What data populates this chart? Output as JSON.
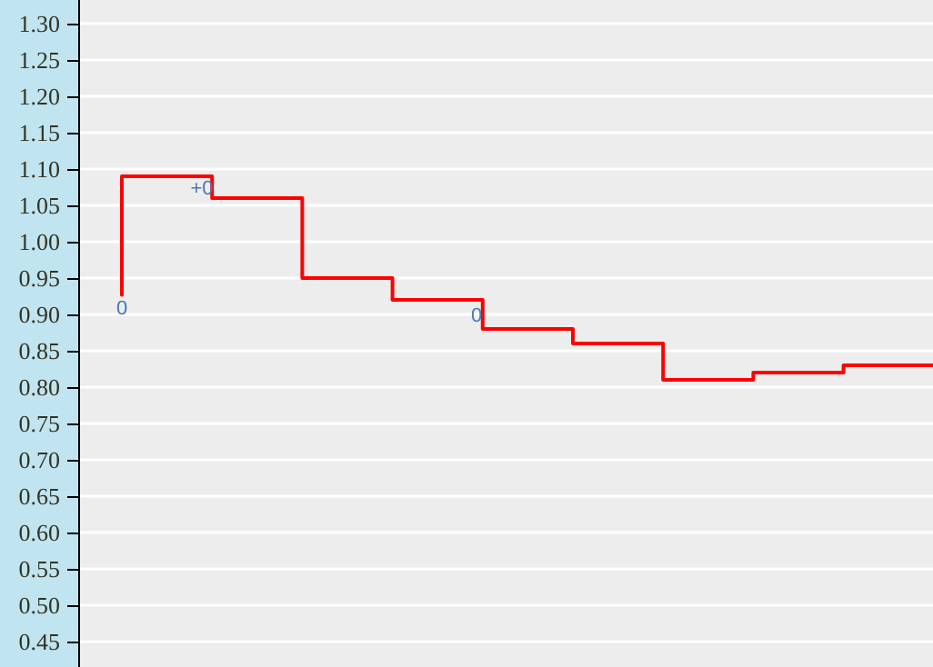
{
  "chart_data": {
    "type": "step",
    "categories": [
      null,
      null,
      null,
      null,
      null,
      null,
      null,
      null,
      null,
      null
    ],
    "series": [
      {
        "color": "#ff0000",
        "values": [
          0.927,
          1.09,
          1.06,
          0.95,
          0.92,
          0.88,
          0.86,
          0.81,
          0.82,
          0.83
        ]
      }
    ],
    "ylim": [
      0.415,
      1.3325
    ],
    "yticks": [
      {
        "value": 0.45,
        "label": "0.45"
      },
      {
        "value": 0.5,
        "label": "0.50"
      },
      {
        "value": 0.55,
        "label": "0.55"
      },
      {
        "value": 0.6,
        "label": "0.60"
      },
      {
        "value": 0.65,
        "label": "0.65"
      },
      {
        "value": 0.7,
        "label": "0.70"
      },
      {
        "value": 0.75,
        "label": "0.75"
      },
      {
        "value": 0.8,
        "label": "0.80"
      },
      {
        "value": 0.85,
        "label": "0.85"
      },
      {
        "value": 0.9,
        "label": "0.90"
      },
      {
        "value": 0.95,
        "label": "0.95"
      },
      {
        "value": 1,
        "label": "1.00"
      },
      {
        "value": 1.05,
        "label": "1.05"
      },
      {
        "value": 1.1,
        "label": "1.10"
      },
      {
        "value": 1.15,
        "label": "1.15"
      },
      {
        "value": 1.2,
        "label": "1.20"
      },
      {
        "value": 1.25,
        "label": "1.25"
      },
      {
        "value": 1.3,
        "label": "1.30"
      }
    ],
    "annotations": [
      "0",
      "+0",
      "0"
    ],
    "grid": "y",
    "tick_labels": "y",
    "marker": "none",
    "line_style": "solid"
  }
}
